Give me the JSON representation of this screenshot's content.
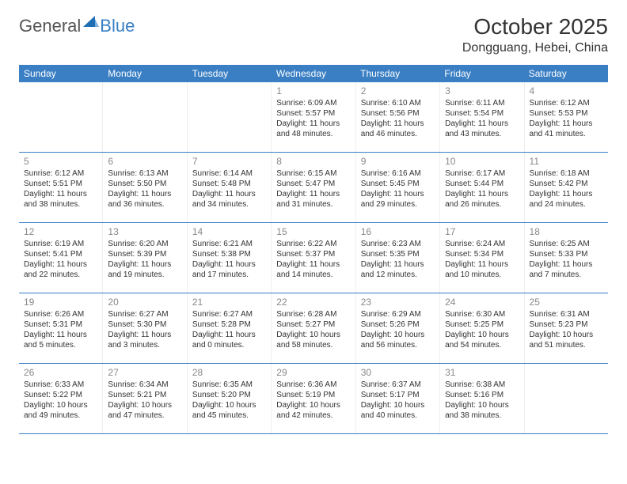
{
  "brand": {
    "general": "General",
    "blue": "Blue",
    "logo_color": "#1f6fb5"
  },
  "header": {
    "title": "October 2025",
    "location": "Dongguang, Hebei, China"
  },
  "colors": {
    "header_bar": "#3a7fc4",
    "divider": "#3a7fc4",
    "day_num": "#888888",
    "text": "#333333",
    "bg": "#ffffff"
  },
  "weekdays": [
    "Sunday",
    "Monday",
    "Tuesday",
    "Wednesday",
    "Thursday",
    "Friday",
    "Saturday"
  ],
  "weeks": [
    [
      null,
      null,
      null,
      {
        "n": "1",
        "sr": "Sunrise: 6:09 AM",
        "ss": "Sunset: 5:57 PM",
        "dl": "Daylight: 11 hours and 48 minutes."
      },
      {
        "n": "2",
        "sr": "Sunrise: 6:10 AM",
        "ss": "Sunset: 5:56 PM",
        "dl": "Daylight: 11 hours and 46 minutes."
      },
      {
        "n": "3",
        "sr": "Sunrise: 6:11 AM",
        "ss": "Sunset: 5:54 PM",
        "dl": "Daylight: 11 hours and 43 minutes."
      },
      {
        "n": "4",
        "sr": "Sunrise: 6:12 AM",
        "ss": "Sunset: 5:53 PM",
        "dl": "Daylight: 11 hours and 41 minutes."
      }
    ],
    [
      {
        "n": "5",
        "sr": "Sunrise: 6:12 AM",
        "ss": "Sunset: 5:51 PM",
        "dl": "Daylight: 11 hours and 38 minutes."
      },
      {
        "n": "6",
        "sr": "Sunrise: 6:13 AM",
        "ss": "Sunset: 5:50 PM",
        "dl": "Daylight: 11 hours and 36 minutes."
      },
      {
        "n": "7",
        "sr": "Sunrise: 6:14 AM",
        "ss": "Sunset: 5:48 PM",
        "dl": "Daylight: 11 hours and 34 minutes."
      },
      {
        "n": "8",
        "sr": "Sunrise: 6:15 AM",
        "ss": "Sunset: 5:47 PM",
        "dl": "Daylight: 11 hours and 31 minutes."
      },
      {
        "n": "9",
        "sr": "Sunrise: 6:16 AM",
        "ss": "Sunset: 5:45 PM",
        "dl": "Daylight: 11 hours and 29 minutes."
      },
      {
        "n": "10",
        "sr": "Sunrise: 6:17 AM",
        "ss": "Sunset: 5:44 PM",
        "dl": "Daylight: 11 hours and 26 minutes."
      },
      {
        "n": "11",
        "sr": "Sunrise: 6:18 AM",
        "ss": "Sunset: 5:42 PM",
        "dl": "Daylight: 11 hours and 24 minutes."
      }
    ],
    [
      {
        "n": "12",
        "sr": "Sunrise: 6:19 AM",
        "ss": "Sunset: 5:41 PM",
        "dl": "Daylight: 11 hours and 22 minutes."
      },
      {
        "n": "13",
        "sr": "Sunrise: 6:20 AM",
        "ss": "Sunset: 5:39 PM",
        "dl": "Daylight: 11 hours and 19 minutes."
      },
      {
        "n": "14",
        "sr": "Sunrise: 6:21 AM",
        "ss": "Sunset: 5:38 PM",
        "dl": "Daylight: 11 hours and 17 minutes."
      },
      {
        "n": "15",
        "sr": "Sunrise: 6:22 AM",
        "ss": "Sunset: 5:37 PM",
        "dl": "Daylight: 11 hours and 14 minutes."
      },
      {
        "n": "16",
        "sr": "Sunrise: 6:23 AM",
        "ss": "Sunset: 5:35 PM",
        "dl": "Daylight: 11 hours and 12 minutes."
      },
      {
        "n": "17",
        "sr": "Sunrise: 6:24 AM",
        "ss": "Sunset: 5:34 PM",
        "dl": "Daylight: 11 hours and 10 minutes."
      },
      {
        "n": "18",
        "sr": "Sunrise: 6:25 AM",
        "ss": "Sunset: 5:33 PM",
        "dl": "Daylight: 11 hours and 7 minutes."
      }
    ],
    [
      {
        "n": "19",
        "sr": "Sunrise: 6:26 AM",
        "ss": "Sunset: 5:31 PM",
        "dl": "Daylight: 11 hours and 5 minutes."
      },
      {
        "n": "20",
        "sr": "Sunrise: 6:27 AM",
        "ss": "Sunset: 5:30 PM",
        "dl": "Daylight: 11 hours and 3 minutes."
      },
      {
        "n": "21",
        "sr": "Sunrise: 6:27 AM",
        "ss": "Sunset: 5:28 PM",
        "dl": "Daylight: 11 hours and 0 minutes."
      },
      {
        "n": "22",
        "sr": "Sunrise: 6:28 AM",
        "ss": "Sunset: 5:27 PM",
        "dl": "Daylight: 10 hours and 58 minutes."
      },
      {
        "n": "23",
        "sr": "Sunrise: 6:29 AM",
        "ss": "Sunset: 5:26 PM",
        "dl": "Daylight: 10 hours and 56 minutes."
      },
      {
        "n": "24",
        "sr": "Sunrise: 6:30 AM",
        "ss": "Sunset: 5:25 PM",
        "dl": "Daylight: 10 hours and 54 minutes."
      },
      {
        "n": "25",
        "sr": "Sunrise: 6:31 AM",
        "ss": "Sunset: 5:23 PM",
        "dl": "Daylight: 10 hours and 51 minutes."
      }
    ],
    [
      {
        "n": "26",
        "sr": "Sunrise: 6:33 AM",
        "ss": "Sunset: 5:22 PM",
        "dl": "Daylight: 10 hours and 49 minutes."
      },
      {
        "n": "27",
        "sr": "Sunrise: 6:34 AM",
        "ss": "Sunset: 5:21 PM",
        "dl": "Daylight: 10 hours and 47 minutes."
      },
      {
        "n": "28",
        "sr": "Sunrise: 6:35 AM",
        "ss": "Sunset: 5:20 PM",
        "dl": "Daylight: 10 hours and 45 minutes."
      },
      {
        "n": "29",
        "sr": "Sunrise: 6:36 AM",
        "ss": "Sunset: 5:19 PM",
        "dl": "Daylight: 10 hours and 42 minutes."
      },
      {
        "n": "30",
        "sr": "Sunrise: 6:37 AM",
        "ss": "Sunset: 5:17 PM",
        "dl": "Daylight: 10 hours and 40 minutes."
      },
      {
        "n": "31",
        "sr": "Sunrise: 6:38 AM",
        "ss": "Sunset: 5:16 PM",
        "dl": "Daylight: 10 hours and 38 minutes."
      },
      null
    ]
  ]
}
